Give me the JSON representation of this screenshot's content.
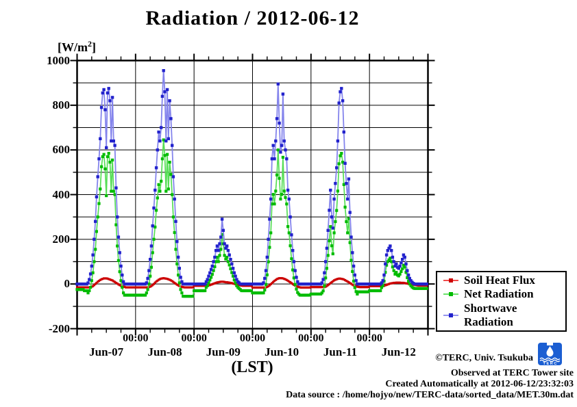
{
  "title": "Radiation / 2012-06-12",
  "y_axis": {
    "unit_prefix": "[W/m",
    "unit_sup": "2",
    "unit_suffix": "]",
    "tick_labels": [
      "1000",
      "800",
      "600",
      "400",
      "200",
      "0",
      "-200"
    ],
    "tick_values": [
      1000,
      800,
      600,
      400,
      200,
      0,
      -200
    ]
  },
  "x_axis": {
    "axis_label": "(LST)",
    "midnight_label": "00:00",
    "midnight_hours": [
      24,
      48,
      72,
      96,
      120
    ],
    "day_labels": [
      "Jun-07",
      "Jun-08",
      "Jun-09",
      "Jun-10",
      "Jun-11",
      "Jun-12"
    ],
    "day_center_hours": [
      12,
      36,
      60,
      84,
      108,
      132
    ]
  },
  "footer": {
    "lines": [
      "©TERC, Univ. Tsukuba",
      "Observed at TERC Tower site",
      "Created Automatically at 2012-06-12/23:32:03",
      "Data source : /home/hojyo/new/TERC-data/sorted_data/MET.30m.dat"
    ]
  },
  "brand": {
    "logo_blue": "#1b5ed2",
    "logo_text": "T E R C"
  },
  "chart_data": {
    "type": "line",
    "title": "Radiation / 2012-06-12",
    "xlabel": "(LST)",
    "ylabel": "[W/m^2]",
    "x_start": "2012-06-07 00:00",
    "x_step_hours": 0.5,
    "x_total_hours": 144,
    "ylim": [
      -200,
      1000
    ],
    "y_major_step": 200,
    "y_minor_step": 100,
    "x_major_step_hours": 24,
    "x_minor_step_hours": 6,
    "grid": true,
    "legend_position": "outside-right-bottom",
    "series": [
      {
        "name": "Soil Heat Flux",
        "line_color": "#ee3333",
        "marker_color": "#cc0000",
        "line_width": 2.4,
        "marker_size": 3.2,
        "values": [
          -15,
          -15,
          -15,
          -15,
          -15,
          -15,
          -15,
          -15,
          -15,
          -15,
          -15,
          -15,
          -12,
          -10,
          -5,
          0,
          5,
          10,
          14,
          18,
          21,
          23,
          25,
          25,
          25,
          24,
          22,
          20,
          18,
          16,
          12,
          9,
          5,
          2,
          -2,
          -5,
          -8,
          -10,
          -12,
          -13,
          -15,
          -15,
          -15,
          -15,
          -15,
          -15,
          -15,
          -15,
          -15,
          -15,
          -15,
          -15,
          -15,
          -15,
          -15,
          -15,
          -15,
          -15,
          -15,
          -14,
          -12,
          -9,
          -5,
          0,
          6,
          11,
          15,
          19,
          22,
          24,
          25,
          26,
          25,
          24,
          23,
          21,
          19,
          16,
          13,
          9,
          5,
          1,
          -3,
          -6,
          -9,
          -11,
          -13,
          -14,
          -15,
          -15,
          -15,
          -15,
          -15,
          -15,
          -15,
          -15,
          -8,
          -8,
          -8,
          -8,
          -8,
          -8,
          -8,
          -8,
          -8,
          -8,
          -8,
          -8,
          -6,
          -5,
          -3,
          -1,
          1,
          3,
          5,
          7,
          8,
          9,
          10,
          10,
          10,
          9,
          8,
          8,
          7,
          6,
          5,
          4,
          2,
          1,
          -1,
          -2,
          -4,
          -5,
          -6,
          -7,
          -8,
          -8,
          -8,
          -8,
          -8,
          -8,
          -8,
          -8,
          -16,
          -16,
          -16,
          -16,
          -16,
          -16,
          -16,
          -16,
          -16,
          -16,
          -16,
          -15,
          -13,
          -10,
          -6,
          -1,
          4,
          9,
          14,
          18,
          22,
          24,
          26,
          26,
          26,
          25,
          23,
          21,
          18,
          15,
          11,
          8,
          4,
          0,
          -4,
          -7,
          -10,
          -12,
          -14,
          -15,
          -16,
          -16,
          -16,
          -16,
          -16,
          -16,
          -16,
          -16,
          -14,
          -14,
          -14,
          -14,
          -14,
          -14,
          -14,
          -14,
          -14,
          -14,
          -14,
          -14,
          -12,
          -9,
          -5,
          -1,
          4,
          8,
          12,
          16,
          19,
          21,
          23,
          24,
          24,
          23,
          22,
          20,
          17,
          14,
          11,
          8,
          4,
          1,
          -3,
          -6,
          -8,
          -10,
          -12,
          -13,
          -14,
          -14,
          -14,
          -14,
          -14,
          -14,
          -14,
          -14,
          -10,
          -10,
          -10,
          -10,
          -10,
          -10,
          -10,
          -10,
          -10,
          -10,
          -10,
          -10,
          -8,
          -6,
          -4,
          -2,
          0,
          2,
          3,
          4,
          5,
          5,
          6,
          6,
          6,
          6,
          5,
          5,
          5,
          4,
          3,
          2,
          1,
          0,
          -1,
          -2,
          -3,
          -4,
          -5,
          -6,
          -7,
          -7,
          -7,
          -7,
          -7,
          -7,
          -7,
          -7
        ]
      },
      {
        "name": "Net Radiation",
        "line_color": "#55dd55",
        "marker_color": "#00bb00",
        "line_width": 1.7,
        "marker_size": 4.2,
        "values": [
          -25,
          -25,
          -25,
          -25,
          -25,
          -25,
          -30,
          -30,
          -30,
          -40,
          -30,
          -15,
          15,
          50,
          100,
          155,
          235,
          300,
          360,
          425,
          525,
          570,
          580,
          515,
          395,
          570,
          585,
          545,
          415,
          555,
          415,
          400,
          265,
          170,
          105,
          55,
          15,
          -15,
          -40,
          -50,
          -50,
          -50,
          -50,
          -50,
          -50,
          -50,
          -50,
          -50,
          -50,
          -50,
          -50,
          -50,
          -50,
          -50,
          -50,
          -50,
          -50,
          -40,
          -25,
          0,
          35,
          75,
          140,
          200,
          255,
          330,
          385,
          445,
          415,
          460,
          560,
          645,
          575,
          415,
          580,
          425,
          545,
          490,
          400,
          300,
          230,
          155,
          90,
          40,
          5,
          -25,
          -40,
          -55,
          -55,
          -55,
          -55,
          -55,
          -55,
          -55,
          -55,
          -55,
          -30,
          -30,
          -30,
          -30,
          -30,
          -30,
          -30,
          -30,
          -30,
          -30,
          -15,
          -8,
          5,
          18,
          30,
          43,
          60,
          77,
          100,
          120,
          100,
          128,
          155,
          222,
          180,
          128,
          111,
          120,
          100,
          85,
          68,
          51,
          35,
          18,
          5,
          -8,
          -15,
          -20,
          -25,
          -30,
          -30,
          -30,
          -30,
          -30,
          -30,
          -30,
          -30,
          -30,
          -40,
          -40,
          -40,
          -40,
          -40,
          -40,
          -40,
          -40,
          -40,
          -40,
          -27,
          -2,
          41,
          99,
          164,
          229,
          358,
          401,
          358,
          416,
          488,
          600,
          473,
          380,
          401,
          567,
          416,
          387,
          358,
          257,
          229,
          171,
          113,
          63,
          27,
          -2,
          -23,
          -38,
          -45,
          -50,
          -50,
          -50,
          -50,
          -50,
          -50,
          -50,
          -50,
          -50,
          -45,
          -45,
          -45,
          -45,
          -45,
          -45,
          -45,
          -45,
          -45,
          -40,
          -31,
          -9,
          27,
          70,
          128,
          193,
          257,
          171,
          135,
          229,
          279,
          329,
          416,
          538,
          574,
          585,
          545,
          445,
          344,
          279,
          229,
          293,
          185,
          106,
          56,
          13,
          -16,
          -34,
          -45,
          -35,
          -35,
          -35,
          -35,
          -35,
          -35,
          -35,
          -35,
          -35,
          -30,
          -30,
          -30,
          -30,
          -30,
          -30,
          -30,
          -30,
          -30,
          -30,
          -16,
          -8,
          12,
          52,
          84,
          100,
          108,
          116,
          100,
          76,
          60,
          44,
          52,
          40,
          36,
          44,
          56,
          68,
          84,
          76,
          52,
          28,
          12,
          0,
          -8,
          -14,
          -18,
          -20,
          -20,
          -20,
          -20,
          -20,
          -20,
          -20,
          -20,
          -20,
          -20,
          -20
        ]
      },
      {
        "name": "Shortwave Radiation",
        "line_color": "#8484ec",
        "marker_color": "#2222cc",
        "line_width": 1.8,
        "marker_size": 4.4,
        "values": [
          0,
          0,
          0,
          0,
          0,
          0,
          0,
          0,
          0,
          5,
          20,
          45,
          80,
          130,
          200,
          280,
          390,
          480,
          560,
          650,
          790,
          855,
          870,
          780,
          610,
          855,
          875,
          820,
          640,
          835,
          640,
          620,
          430,
          300,
          210,
          140,
          80,
          40,
          10,
          0,
          0,
          0,
          0,
          0,
          0,
          0,
          0,
          0,
          0,
          0,
          0,
          0,
          0,
          0,
          0,
          0,
          0,
          5,
          25,
          60,
          110,
          170,
          260,
          340,
          420,
          520,
          600,
          680,
          640,
          700,
          840,
          955,
          860,
          640,
          870,
          650,
          820,
          740,
          620,
          480,
          380,
          280,
          190,
          120,
          70,
          30,
          10,
          0,
          0,
          0,
          0,
          0,
          0,
          0,
          0,
          0,
          0,
          0,
          0,
          0,
          0,
          0,
          0,
          0,
          0,
          0,
          10,
          20,
          35,
          50,
          65,
          80,
          100,
          120,
          150,
          170,
          150,
          180,
          210,
          290,
          240,
          180,
          160,
          170,
          150,
          130,
          110,
          90,
          70,
          50,
          35,
          20,
          10,
          5,
          0,
          0,
          0,
          0,
          0,
          0,
          0,
          0,
          0,
          0,
          0,
          0,
          0,
          0,
          0,
          0,
          0,
          0,
          0,
          5,
          25,
          60,
          120,
          200,
          290,
          380,
          560,
          620,
          560,
          640,
          740,
          895,
          720,
          590,
          620,
          850,
          640,
          600,
          560,
          420,
          380,
          300,
          220,
          150,
          100,
          60,
          30,
          10,
          0,
          0,
          0,
          0,
          0,
          0,
          0,
          0,
          0,
          0,
          0,
          0,
          0,
          0,
          0,
          0,
          0,
          0,
          0,
          5,
          20,
          50,
          100,
          160,
          240,
          330,
          420,
          300,
          250,
          380,
          450,
          520,
          640,
          810,
          860,
          875,
          820,
          680,
          540,
          450,
          380,
          470,
          320,
          210,
          140,
          80,
          40,
          15,
          0,
          0,
          0,
          0,
          0,
          0,
          0,
          0,
          0,
          0,
          0,
          0,
          0,
          0,
          0,
          0,
          0,
          0,
          0,
          0,
          5,
          15,
          40,
          90,
          130,
          150,
          160,
          170,
          150,
          120,
          100,
          80,
          90,
          75,
          70,
          80,
          95,
          110,
          130,
          120,
          90,
          60,
          40,
          25,
          15,
          8,
          3,
          0,
          0,
          0,
          0,
          0,
          0,
          0,
          0,
          0,
          0,
          0
        ]
      }
    ]
  }
}
